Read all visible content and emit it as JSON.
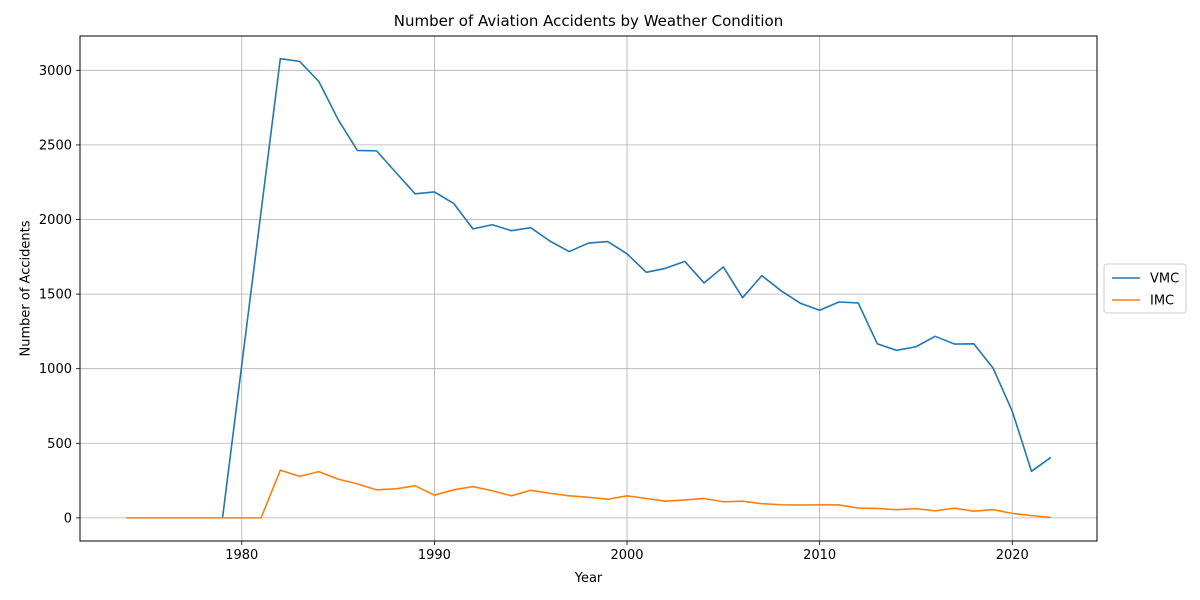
{
  "chart_data": {
    "type": "line",
    "title": "Number of Aviation Accidents by Weather Condition",
    "xlabel": "Year",
    "ylabel": "Number of Accidents",
    "xlim": [
      1971.6,
      2024.4
    ],
    "ylim": [
      -155,
      3230
    ],
    "xticks": [
      1980,
      1990,
      2000,
      2010,
      2020
    ],
    "xtick_labels": [
      "1980",
      "1990",
      "2000",
      "2010",
      "2020"
    ],
    "yticks": [
      0,
      500,
      1000,
      1500,
      2000,
      2500,
      3000
    ],
    "ytick_labels": [
      "0",
      "500",
      "1000",
      "1500",
      "2000",
      "2500",
      "3000"
    ],
    "grid": true,
    "legend_position": "outside-right",
    "series": [
      {
        "name": "VMC",
        "color": "#1f77b4",
        "points": [
          [
            1979,
            0
          ],
          [
            1982,
            3078
          ],
          [
            1983,
            3060
          ],
          [
            1984,
            2925
          ],
          [
            1985,
            2670
          ],
          [
            1986,
            2463
          ],
          [
            1987,
            2460
          ],
          [
            1988,
            2315
          ],
          [
            1989,
            2172
          ],
          [
            1990,
            2185
          ],
          [
            1991,
            2108
          ],
          [
            1992,
            1937
          ],
          [
            1993,
            1965
          ],
          [
            1994,
            1925
          ],
          [
            1995,
            1945
          ],
          [
            1996,
            1855
          ],
          [
            1997,
            1785
          ],
          [
            1998,
            1842
          ],
          [
            1999,
            1852
          ],
          [
            2000,
            1770
          ],
          [
            2001,
            1646
          ],
          [
            2002,
            1673
          ],
          [
            2003,
            1719
          ],
          [
            2004,
            1575
          ],
          [
            2005,
            1682
          ],
          [
            2006,
            1476
          ],
          [
            2007,
            1624
          ],
          [
            2008,
            1522
          ],
          [
            2009,
            1439
          ],
          [
            2010,
            1392
          ],
          [
            2011,
            1447
          ],
          [
            2012,
            1441
          ],
          [
            2013,
            1166
          ],
          [
            2014,
            1123
          ],
          [
            2015,
            1147
          ],
          [
            2016,
            1217
          ],
          [
            2017,
            1165
          ],
          [
            2018,
            1167
          ],
          [
            2019,
            1005
          ],
          [
            2020,
            715
          ],
          [
            2021,
            312
          ],
          [
            2022,
            405
          ]
        ]
      },
      {
        "name": "IMC",
        "color": "#ff7f0e",
        "points": [
          [
            1974,
            0
          ],
          [
            1975,
            0
          ],
          [
            1976,
            0
          ],
          [
            1977,
            0
          ],
          [
            1978,
            0
          ],
          [
            1979,
            0
          ],
          [
            1980,
            0
          ],
          [
            1981,
            0
          ],
          [
            1982,
            320
          ],
          [
            1983,
            278
          ],
          [
            1984,
            310
          ],
          [
            1985,
            260
          ],
          [
            1986,
            228
          ],
          [
            1987,
            188
          ],
          [
            1988,
            195
          ],
          [
            1989,
            215
          ],
          [
            1990,
            152
          ],
          [
            1991,
            188
          ],
          [
            1992,
            210
          ],
          [
            1993,
            182
          ],
          [
            1994,
            148
          ],
          [
            1995,
            185
          ],
          [
            1996,
            165
          ],
          [
            1997,
            148
          ],
          [
            1998,
            138
          ],
          [
            1999,
            125
          ],
          [
            2000,
            148
          ],
          [
            2001,
            130
          ],
          [
            2002,
            112
          ],
          [
            2003,
            120
          ],
          [
            2004,
            130
          ],
          [
            2005,
            108
          ],
          [
            2006,
            112
          ],
          [
            2007,
            95
          ],
          [
            2008,
            88
          ],
          [
            2009,
            86
          ],
          [
            2010,
            88
          ],
          [
            2011,
            87
          ],
          [
            2012,
            66
          ],
          [
            2013,
            63
          ],
          [
            2014,
            55
          ],
          [
            2015,
            62
          ],
          [
            2016,
            47
          ],
          [
            2017,
            65
          ],
          [
            2018,
            45
          ],
          [
            2019,
            55
          ],
          [
            2020,
            30
          ],
          [
            2021,
            15
          ],
          [
            2022,
            3
          ]
        ]
      }
    ]
  }
}
